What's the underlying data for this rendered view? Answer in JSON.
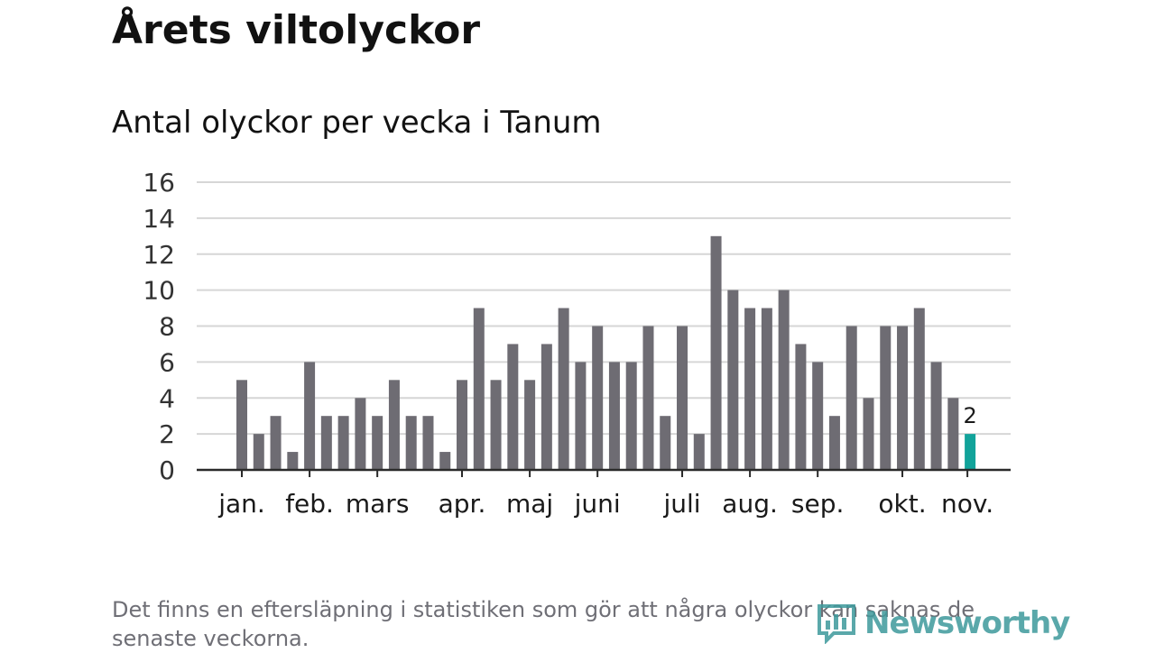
{
  "header": {
    "title": "Årets viltolyckor",
    "subtitle": "Antal olyckor per vecka i Tanum"
  },
  "footnote": "Det finns en eftersläpning i statistiken som gör att några olyckor kan saknas de senaste veckorna.",
  "branding": {
    "logo_text": "Newsworthy",
    "logo_icon": "bar-chart-icon"
  },
  "colors": {
    "bar": "#6e6c73",
    "highlight": "#12a39a",
    "grid": "#d6d6d6",
    "axis": "#2a2a2a",
    "text": "#121212",
    "footnote": "#6f6f76",
    "logo": "#3e9a9c"
  },
  "chart_data": {
    "type": "bar",
    "title": "Antal olyckor per vecka i Tanum",
    "xlabel": "",
    "ylabel": "",
    "ylim": [
      0,
      16
    ],
    "yticks": [
      0,
      2,
      4,
      6,
      8,
      10,
      12,
      14,
      16
    ],
    "grid": true,
    "values": [
      5,
      2,
      3,
      1,
      6,
      3,
      3,
      4,
      3,
      5,
      3,
      3,
      1,
      5,
      9,
      5,
      7,
      5,
      7,
      9,
      6,
      8,
      6,
      6,
      8,
      3,
      8,
      2,
      13,
      10,
      9,
      9,
      10,
      7,
      6,
      3,
      8,
      4,
      8,
      8,
      9,
      6,
      4,
      2
    ],
    "highlight_index": 43,
    "highlight_label": "2",
    "months": [
      {
        "label": "jan.",
        "week": 1
      },
      {
        "label": "feb.",
        "week": 5
      },
      {
        "label": "mars",
        "week": 9
      },
      {
        "label": "apr.",
        "week": 14
      },
      {
        "label": "maj",
        "week": 18
      },
      {
        "label": "juni",
        "week": 22
      },
      {
        "label": "juli",
        "week": 27
      },
      {
        "label": "aug.",
        "week": 31
      },
      {
        "label": "sep.",
        "week": 35
      },
      {
        "label": "okt.",
        "week": 40
      },
      {
        "label": "nov.",
        "week": 44
      }
    ]
  }
}
